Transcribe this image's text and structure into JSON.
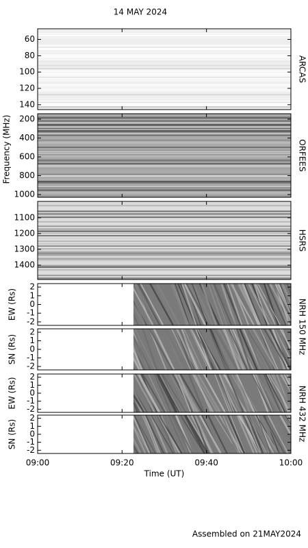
{
  "chart_data": {
    "type": "spectrogram",
    "title": "14 MAY 2024",
    "y_label": "Frequency (MHz)",
    "x_label": "Time (UT)",
    "footer": "Assembled on 21MAY2024",
    "xlim": [
      0,
      60
    ],
    "xticks": [
      {
        "value": 0,
        "label": "09:00"
      },
      {
        "value": 20,
        "label": "09:20"
      },
      {
        "value": 40,
        "label": "09:40"
      },
      {
        "value": 60,
        "label": "10:00"
      }
    ],
    "panels": [
      {
        "label": "ARCAS",
        "ylim": [
          47,
          146
        ],
        "yticks": [
          60,
          80,
          100,
          120,
          140
        ]
      },
      {
        "label": "ORFEES",
        "ylim": [
          142,
          1029
        ],
        "yticks": [
          200,
          400,
          600,
          800,
          1000
        ]
      },
      {
        "label": "HSRS",
        "ylim": [
          996,
          1491
        ],
        "yticks": [
          1100,
          1200,
          1300,
          1400
        ]
      },
      {
        "y_label": "EW (Rs)",
        "ylim": [
          2.4,
          -2.4
        ],
        "yticks": [
          2,
          1,
          0,
          -1,
          -2
        ]
      },
      {
        "y_label": "SN (Rs)",
        "ylim": [
          2.4,
          -2.4
        ],
        "yticks": [
          2,
          1,
          0,
          -1,
          -2
        ]
      },
      {
        "y_label": "EW (Rs)",
        "ylim": [
          2.4,
          -2.4
        ],
        "yticks": [
          2,
          1,
          0,
          -1,
          -2
        ]
      },
      {
        "y_label": "SN (Rs)",
        "ylim": [
          2.4,
          -2.4
        ],
        "yticks": [
          2,
          1,
          0,
          -1,
          -2
        ]
      }
    ],
    "groups": [
      {
        "label": "NRH 150 MHz"
      },
      {
        "label": "NRH 432 MHz"
      }
    ]
  }
}
